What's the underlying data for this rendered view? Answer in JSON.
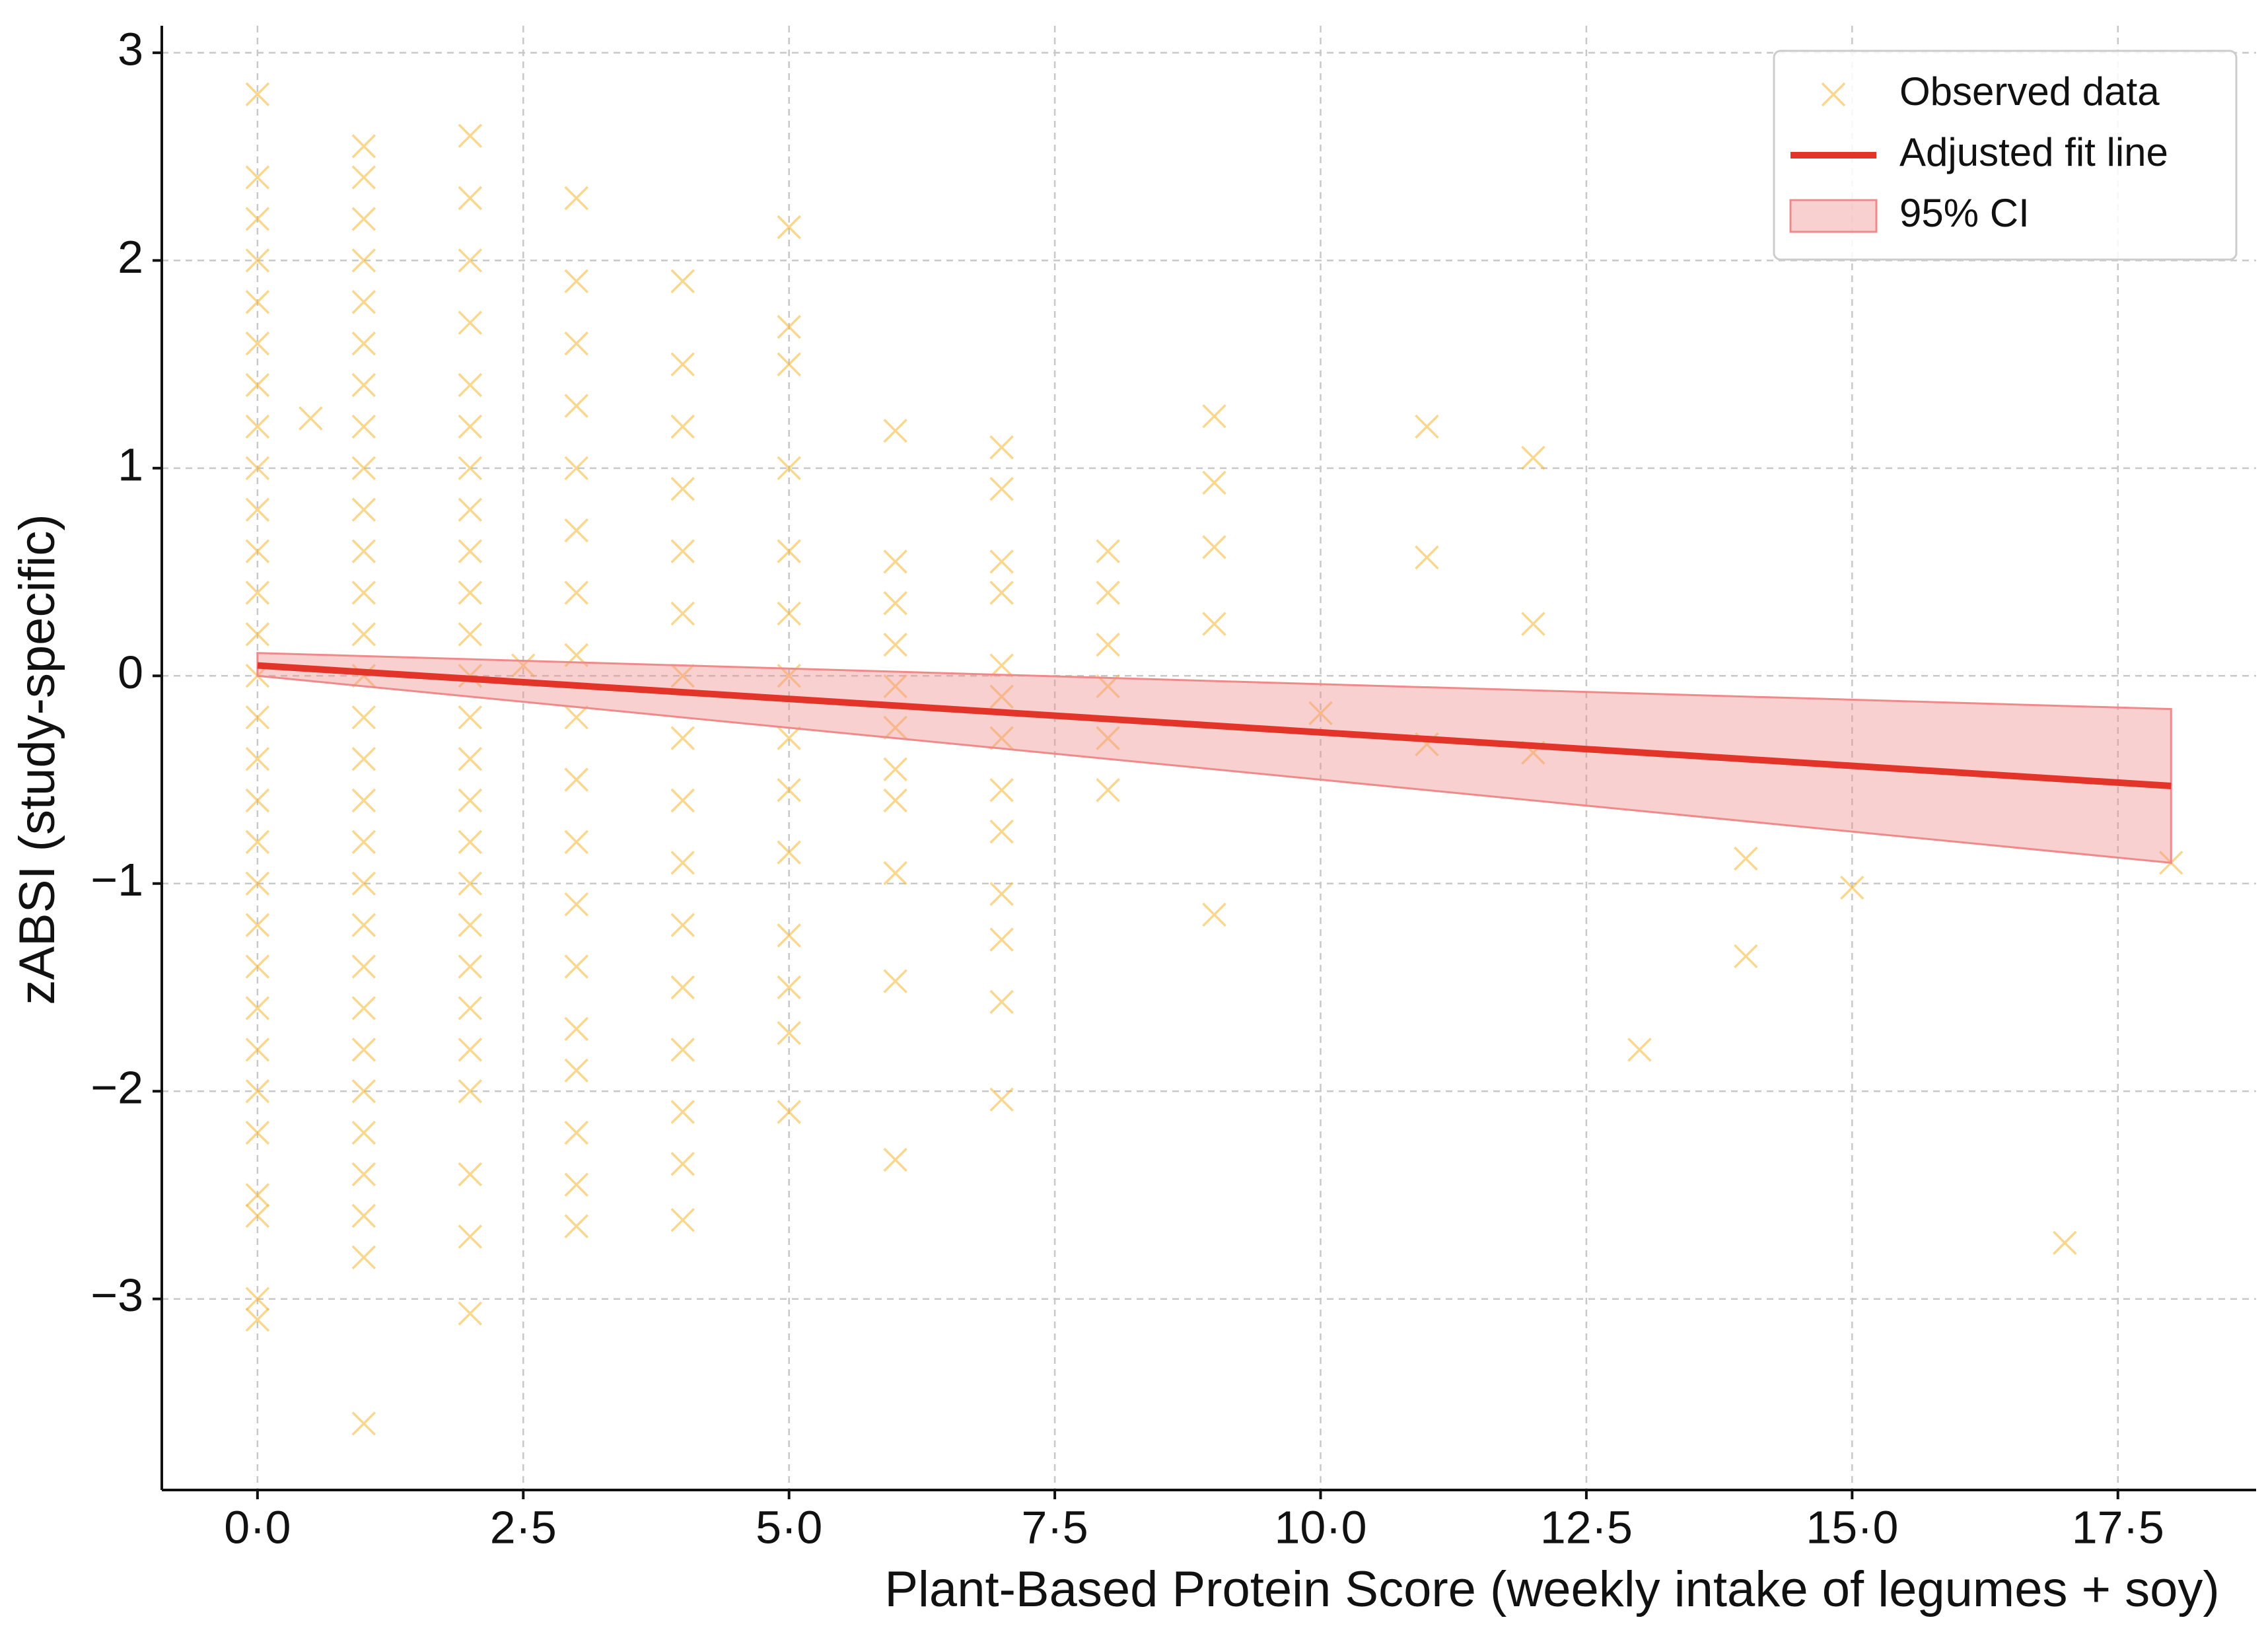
{
  "chart_data": {
    "type": "scatter",
    "xlabel": "Plant-Based Protein Score (weekly intake of legumes + soy)",
    "ylabel": "zABSI (study-specific)",
    "xlim": [
      -0.9,
      18.8
    ],
    "ylim": [
      -3.92,
      3.13
    ],
    "xticks": [
      {
        "value": 0,
        "label": "0·0"
      },
      {
        "value": 2.5,
        "label": "2·5"
      },
      {
        "value": 5,
        "label": "5·0"
      },
      {
        "value": 7.5,
        "label": "7·5"
      },
      {
        "value": 10,
        "label": "10·0"
      },
      {
        "value": 12.5,
        "label": "12·5"
      },
      {
        "value": 15,
        "label": "15·0"
      },
      {
        "value": 17.5,
        "label": "17·5"
      }
    ],
    "yticks": [
      {
        "value": -3,
        "label": "−3"
      },
      {
        "value": -2,
        "label": "−2"
      },
      {
        "value": -1,
        "label": "−1"
      },
      0,
      1,
      2,
      3
    ],
    "grid": true,
    "legend": "upper right",
    "series": [
      {
        "name": "Observed data",
        "type": "scatter",
        "color": "#f5b731",
        "x": [
          0,
          0,
          0,
          0,
          0,
          0,
          0,
          0,
          0,
          0,
          0,
          0,
          0,
          0,
          0,
          0,
          0,
          0,
          0,
          0,
          0,
          0,
          0,
          0,
          0,
          0,
          0,
          0,
          0,
          0.5,
          1,
          1,
          1,
          1,
          1,
          1,
          1,
          1,
          1,
          1,
          1,
          1,
          1,
          1,
          1,
          1,
          1,
          1,
          1,
          1,
          1,
          1,
          1,
          1,
          1,
          1,
          1,
          1,
          1,
          2,
          2,
          2,
          2,
          2,
          2,
          2,
          2,
          2,
          2,
          2,
          2,
          2,
          2,
          2,
          2,
          2,
          2,
          2,
          2,
          2,
          2,
          2,
          2,
          2,
          2.5,
          3,
          3,
          3,
          3,
          3,
          3,
          3,
          3,
          3,
          3,
          3,
          3,
          3,
          3,
          3,
          3,
          3,
          3,
          4,
          4,
          4,
          4,
          4,
          4,
          4,
          4,
          4,
          4,
          4,
          4,
          4,
          4,
          4,
          4,
          5,
          5,
          5,
          5,
          5,
          5,
          5,
          5,
          5,
          5,
          5,
          5,
          5,
          5,
          6,
          6,
          6,
          6,
          6,
          6,
          6,
          6,
          6,
          6,
          6,
          7,
          7,
          7,
          7,
          7,
          7,
          7,
          7,
          7,
          7,
          7,
          7,
          7,
          8,
          8,
          8,
          8,
          8,
          8,
          9,
          9,
          9,
          9,
          9,
          10,
          11,
          11,
          11,
          12,
          12,
          12,
          13,
          14,
          14,
          15,
          17,
          18
        ],
        "values": [
          2.8,
          2.4,
          2.2,
          2.0,
          1.8,
          1.6,
          1.4,
          1.2,
          1.0,
          0.8,
          0.6,
          0.4,
          0.2,
          0.0,
          -0.2,
          -0.4,
          -0.6,
          -0.8,
          -1.0,
          -1.2,
          -1.4,
          -1.6,
          -1.8,
          -2.0,
          -2.2,
          -2.5,
          -2.6,
          -3.0,
          -3.1,
          1.24,
          2.55,
          2.4,
          2.2,
          2.0,
          1.8,
          1.6,
          1.4,
          1.2,
          1.0,
          0.8,
          0.6,
          0.4,
          0.2,
          0.0,
          -0.2,
          -0.4,
          -0.6,
          -0.8,
          -1.0,
          -1.2,
          -1.4,
          -1.6,
          -1.8,
          -2.0,
          -2.2,
          -2.4,
          -2.6,
          -2.8,
          -3.6,
          2.6,
          2.3,
          2.0,
          1.7,
          1.4,
          1.2,
          1.0,
          0.8,
          0.6,
          0.4,
          0.2,
          0.0,
          -0.2,
          -0.4,
          -0.6,
          -0.8,
          -1.0,
          -1.2,
          -1.4,
          -1.6,
          -1.8,
          -2.0,
          -2.4,
          -2.7,
          -3.07,
          0.05,
          2.3,
          1.9,
          1.6,
          1.3,
          1.0,
          0.7,
          0.4,
          0.1,
          -0.2,
          -0.5,
          -0.8,
          -1.1,
          -1.4,
          -1.7,
          -1.9,
          -2.2,
          -2.45,
          -2.65,
          1.9,
          1.5,
          1.2,
          0.9,
          0.6,
          0.3,
          0.0,
          -0.3,
          -0.6,
          -0.9,
          -1.2,
          -1.5,
          -1.8,
          -2.1,
          -2.35,
          -2.62,
          2.16,
          1.68,
          1.5,
          1.0,
          0.6,
          0.3,
          0.0,
          -0.3,
          -0.55,
          -0.85,
          -1.25,
          -1.5,
          -1.72,
          -2.1,
          1.18,
          0.55,
          0.35,
          0.15,
          -0.05,
          -0.25,
          -0.45,
          -0.6,
          -0.95,
          -1.47,
          -2.33,
          1.1,
          0.9,
          0.55,
          0.4,
          0.05,
          -0.1,
          -0.3,
          -0.55,
          -0.75,
          -1.05,
          -1.27,
          -1.57,
          -2.04,
          0.6,
          0.4,
          0.15,
          -0.05,
          -0.3,
          -0.55,
          1.25,
          0.93,
          0.62,
          0.25,
          -1.15,
          -0.18,
          1.2,
          0.57,
          -0.33,
          1.05,
          0.25,
          -0.37,
          -1.8,
          -0.88,
          -1.35,
          -1.02,
          -2.73,
          -0.9
        ]
      },
      {
        "name": "Adjusted fit line",
        "type": "line",
        "color": "#e3342a",
        "x": [
          0,
          18
        ],
        "values": [
          0.05,
          -0.53
        ]
      },
      {
        "name": "95% CI",
        "type": "band",
        "color": "#f08a8a",
        "x": [
          0,
          18
        ],
        "lower": [
          0.0,
          -0.9
        ],
        "upper": [
          0.11,
          -0.16
        ]
      }
    ]
  }
}
